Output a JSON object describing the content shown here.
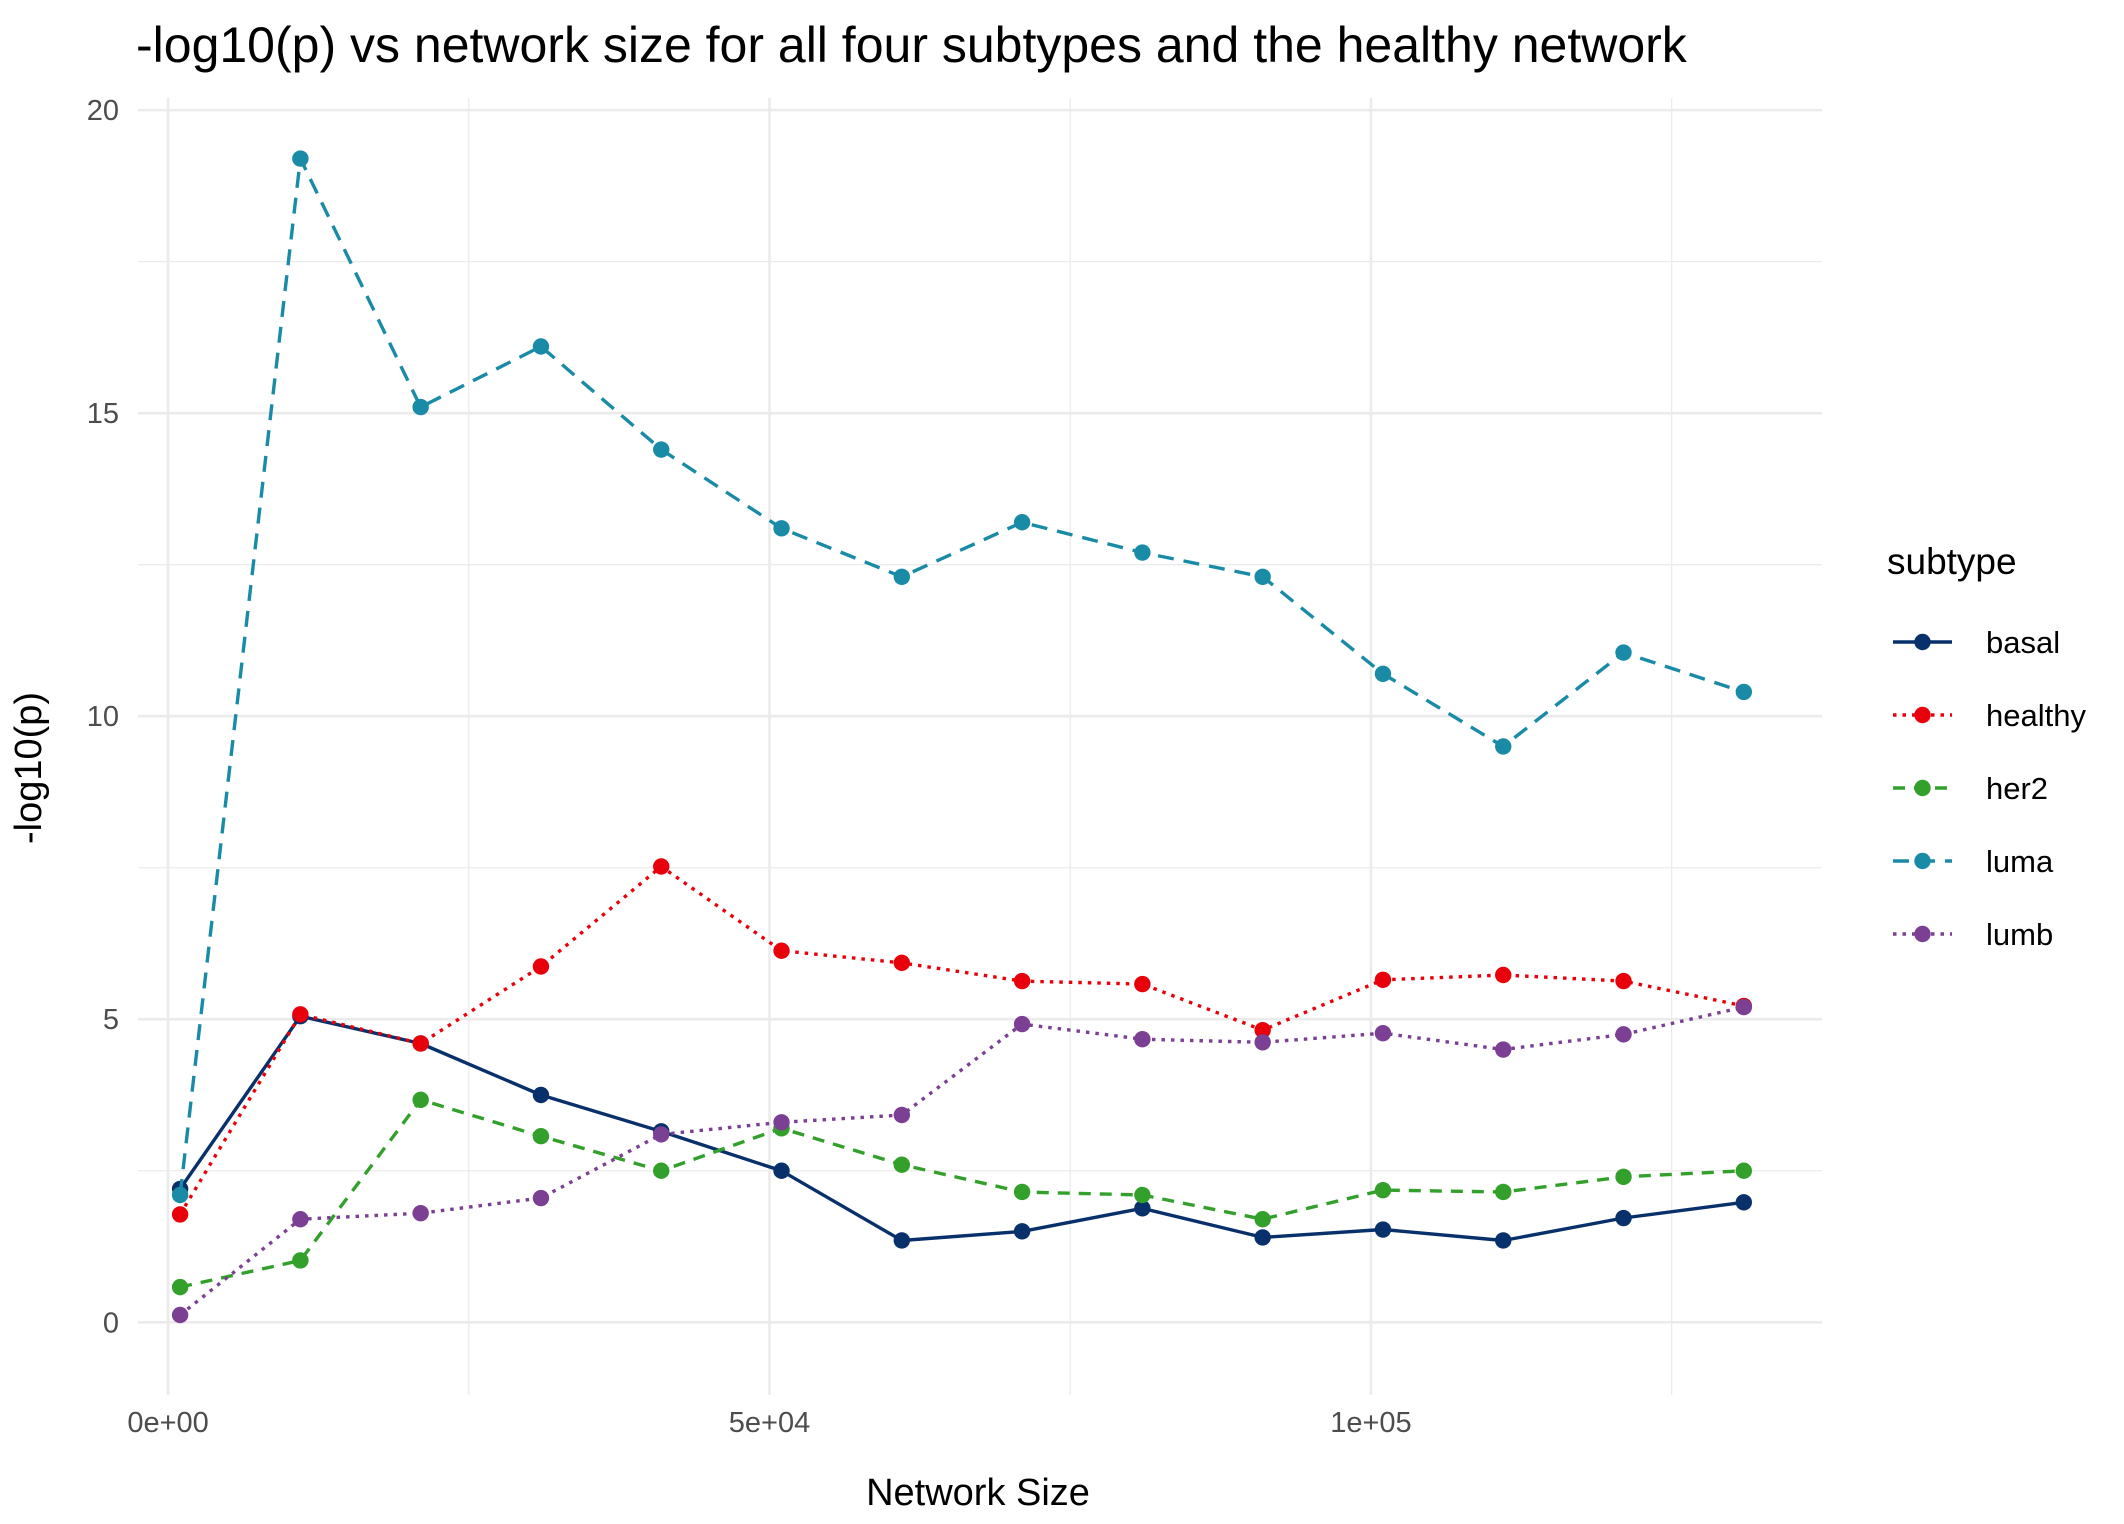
{
  "chart_data": {
    "type": "line",
    "title": "-log10(p) vs network size for all four subtypes and the healthy network",
    "xlabel": "Network Size",
    "ylabel": "-log10(p)",
    "xlim": [
      -2500,
      137500
    ],
    "ylim": [
      -1.2,
      20.2
    ],
    "x_ticks": [
      0,
      50000,
      100000
    ],
    "x_tick_labels": [
      "0e+00",
      "5e+04",
      "1e+05"
    ],
    "x_minor_ticks": [
      25000,
      75000,
      125000
    ],
    "y_ticks": [
      0,
      5,
      10,
      15,
      20
    ],
    "y_tick_labels": [
      "0",
      "5",
      "10",
      "15",
      "20"
    ],
    "y_minor_ticks": [
      2.5,
      7.5,
      12.5,
      17.5
    ],
    "grid": true,
    "legend_title": "subtype",
    "legend_position": "right",
    "x": [
      1000,
      11000,
      21000,
      31000,
      41000,
      51000,
      61000,
      71000,
      81000,
      91000,
      101000,
      111000,
      121000,
      131000
    ],
    "series": [
      {
        "name": "basal",
        "color": "#08306b",
        "dash": "solid",
        "values": [
          2.2,
          5.05,
          4.6,
          3.75,
          3.15,
          2.5,
          1.35,
          1.5,
          1.88,
          1.4,
          1.53,
          1.35,
          1.72,
          1.98
        ]
      },
      {
        "name": "healthy",
        "color": "#e8000b",
        "dash": "dotted",
        "values": [
          1.78,
          5.08,
          4.6,
          5.87,
          7.52,
          6.13,
          5.93,
          5.63,
          5.58,
          4.82,
          5.65,
          5.73,
          5.63,
          5.22
        ]
      },
      {
        "name": "her2",
        "color": "#33a02c",
        "dash": "dashed",
        "values": [
          0.58,
          1.02,
          3.67,
          3.07,
          2.5,
          3.2,
          2.6,
          2.15,
          2.1,
          1.7,
          2.18,
          2.15,
          2.4,
          2.5
        ]
      },
      {
        "name": "luma",
        "color": "#1a8ba6",
        "dash": "longdash",
        "values": [
          2.1,
          19.2,
          15.1,
          16.1,
          14.4,
          13.1,
          12.3,
          13.2,
          12.7,
          12.3,
          10.7,
          9.5,
          11.05,
          10.4
        ]
      },
      {
        "name": "lumb",
        "color": "#7b3f93",
        "dash": "dotted",
        "values": [
          0.12,
          1.7,
          1.8,
          2.05,
          3.1,
          3.3,
          3.42,
          4.92,
          4.67,
          4.62,
          4.77,
          4.5,
          4.75,
          5.2
        ]
      }
    ]
  }
}
